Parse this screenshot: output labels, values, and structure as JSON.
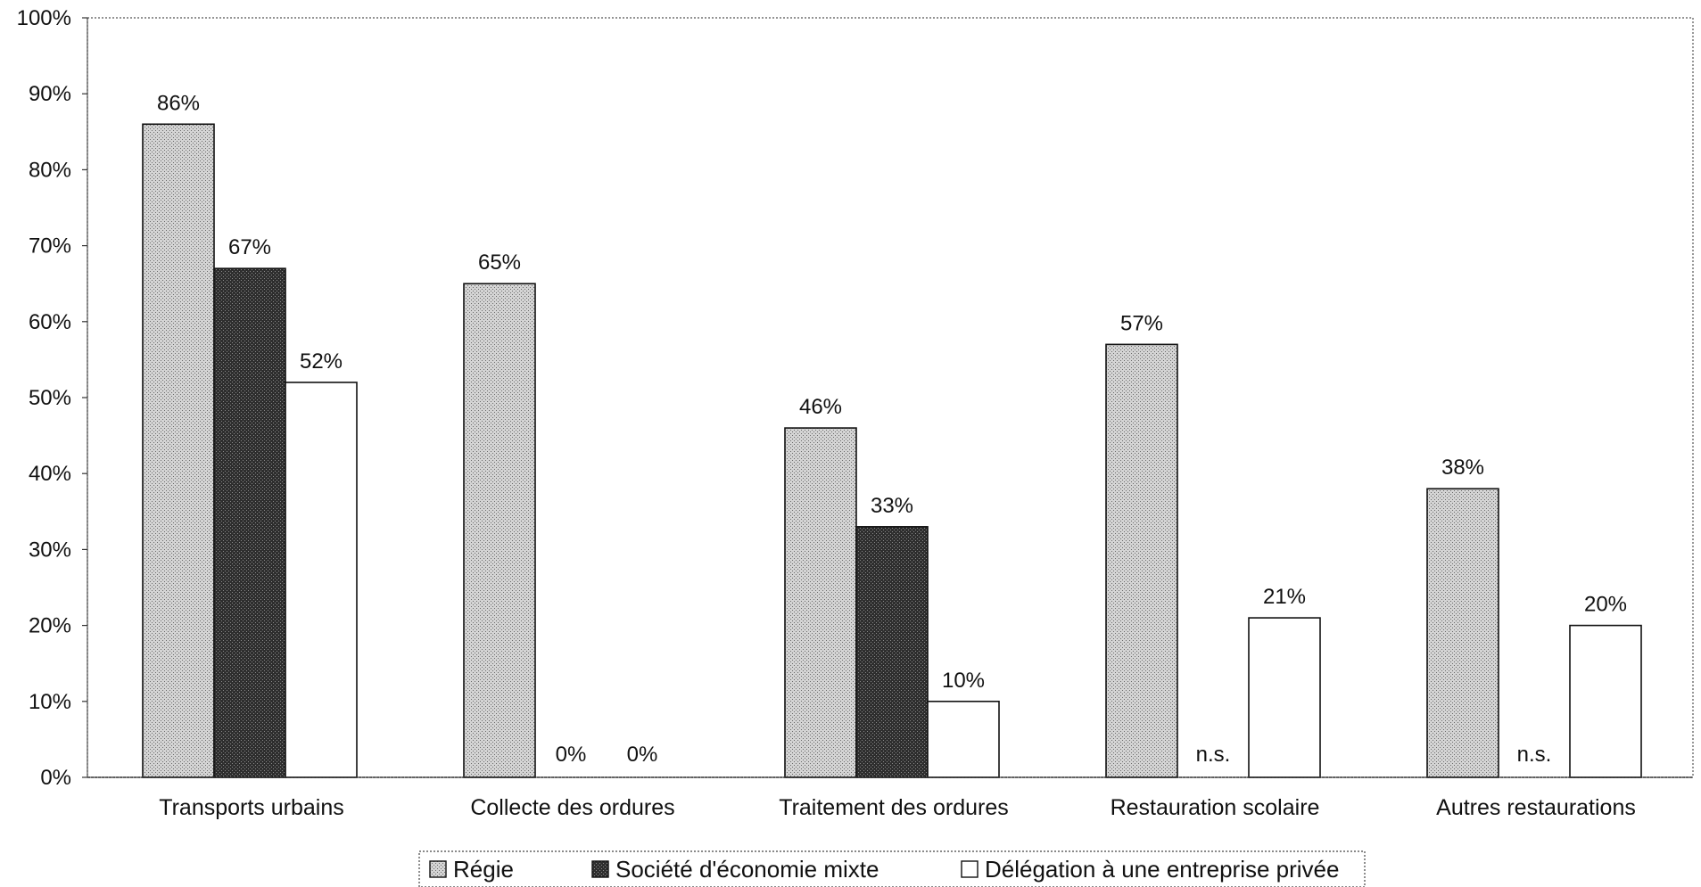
{
  "chart_data": {
    "type": "bar",
    "title": "",
    "xlabel": "",
    "ylabel": "",
    "ylim": [
      0,
      100
    ],
    "yticks": [
      "0%",
      "10%",
      "20%",
      "30%",
      "40%",
      "50%",
      "60%",
      "70%",
      "80%",
      "90%",
      "100%"
    ],
    "grid": false,
    "legend_position": "bottom",
    "categories": [
      "Transports urbains",
      "Collecte des ordures",
      "Traitement des ordures",
      "Restauration scolaire",
      "Autres restaurations"
    ],
    "series": [
      {
        "name": "Régie",
        "color": "#bdbdbd",
        "pattern": "dotted",
        "values": [
          86,
          65,
          46,
          57,
          38
        ],
        "labels": [
          "86%",
          "65%",
          "46%",
          "57%",
          "38%"
        ]
      },
      {
        "name": "Société d'économie mixte",
        "color": "#3a3a3a",
        "pattern": "dark",
        "values": [
          67,
          0,
          33,
          null,
          null
        ],
        "labels": [
          "67%",
          "0%",
          "33%",
          "n.s.",
          "n.s."
        ]
      },
      {
        "name": "Délégation à une entreprise privée",
        "color": "#ffffff",
        "pattern": "none",
        "values": [
          52,
          0,
          10,
          21,
          20
        ],
        "labels": [
          "52%",
          "0%",
          "10%",
          "21%",
          "20%"
        ]
      }
    ]
  }
}
